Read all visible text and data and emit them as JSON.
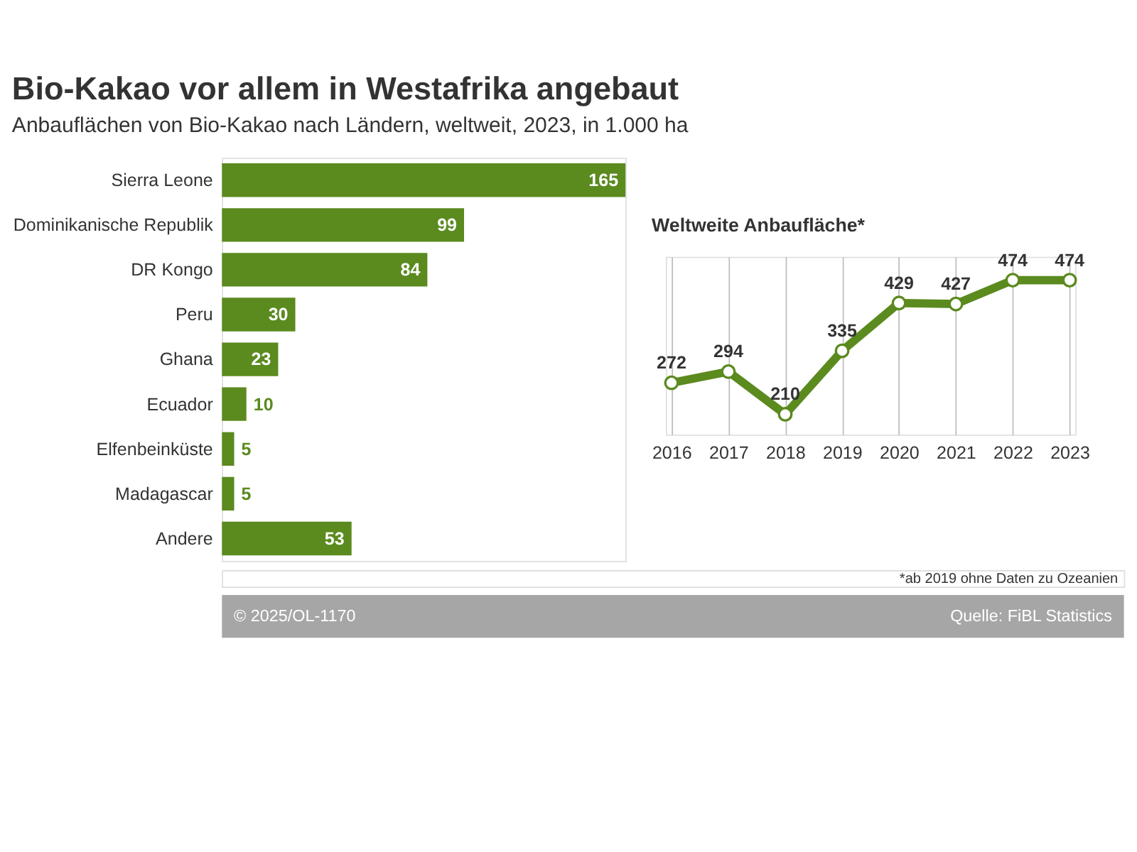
{
  "chart_data": [
    {
      "type": "bar",
      "title": "Bio-Kakao vor allem in Westafrika angebaut",
      "subtitle": "Anbauflächen von Bio-Kakao nach Ländern, weltweit, 2023, in 1.000 ha",
      "orientation": "horizontal",
      "categories": [
        "Sierra Leone",
        "Dominikanische Republik",
        "DR Kongo",
        "Peru",
        "Ghana",
        "Ecuador",
        "Elfenbeinküste",
        "Madagascar",
        "Andere"
      ],
      "values": [
        165,
        99,
        84,
        30,
        23,
        10,
        5,
        5,
        53
      ],
      "color": "#5b8a1f",
      "data_labels": true,
      "tick_labels": "y",
      "grid": false,
      "annotations": [
        "© 2025/OL-1170",
        "Quelle: FiBL Statistics"
      ]
    },
    {
      "type": "line",
      "title": "Weltweite Anbaufläche*",
      "categories": [
        "2016",
        "2017",
        "2018",
        "2019",
        "2020",
        "2021",
        "2022",
        "2023"
      ],
      "values": [
        272,
        294,
        210,
        335,
        429,
        427,
        474,
        474
      ],
      "color": "#5b8a1f",
      "marker": "circle",
      "data_labels": true,
      "ylim": [
        170,
        520
      ],
      "tick_labels": "x",
      "grid": "x",
      "annotations": [
        "*ab 2019 ohne Daten zu Ozeanien"
      ]
    }
  ]
}
